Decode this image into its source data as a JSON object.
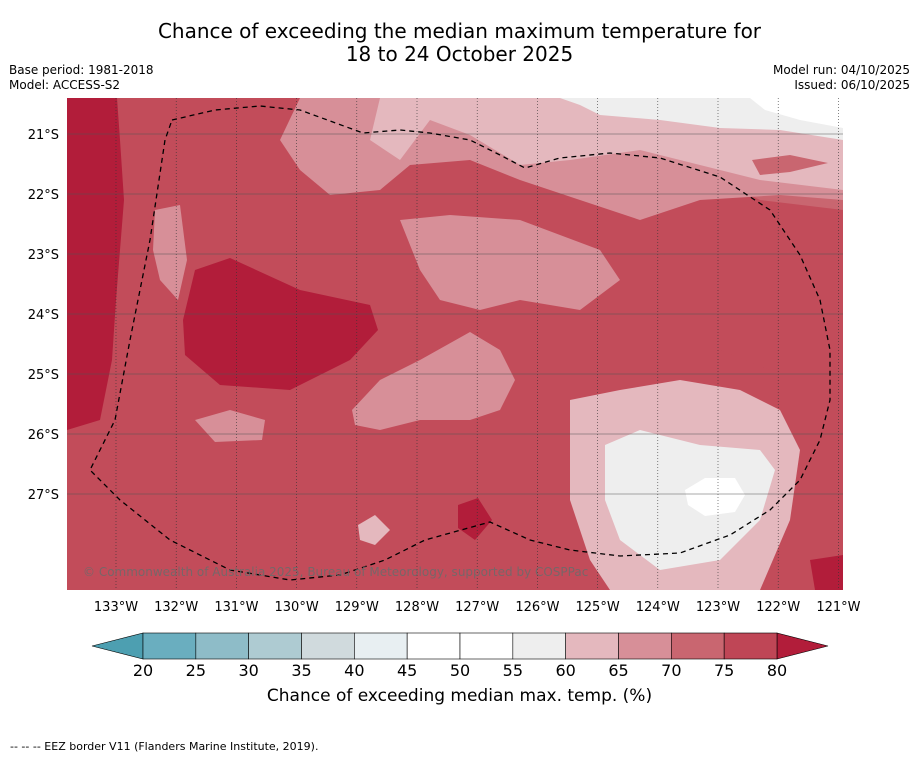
{
  "title": {
    "line1": "Chance of exceeding the median maximum temperature for",
    "line2": "18 to 24 October 2025"
  },
  "meta": {
    "base_period": "Base period: 1981-2018",
    "model": "Model: ACCESS-S2",
    "model_run": "Model run: 04/10/2025",
    "issued": "Issued: 06/10/2025"
  },
  "map": {
    "lon_ticks": [
      "133°W",
      "132°W",
      "131°W",
      "130°W",
      "129°W",
      "128°W",
      "127°W",
      "126°W",
      "125°W",
      "124°W",
      "123°W",
      "122°W",
      "121°W"
    ],
    "lat_ticks": [
      "21°S",
      "22°S",
      "23°S",
      "24°S",
      "25°S",
      "26°S",
      "27°S"
    ],
    "credit": "© Commonwealth of Australia 2025, Bureau of Meteorology, supported by COSPPac"
  },
  "colorbar": {
    "ticks": [
      "20",
      "25",
      "30",
      "35",
      "40",
      "45",
      "50",
      "55",
      "60",
      "65",
      "70",
      "75",
      "80"
    ],
    "colors": [
      "#6aaebf",
      "#8ebcc8",
      "#aecbd2",
      "#d0dadd",
      "#e8eff2",
      "#ffffff",
      "#ffffff",
      "#eeeeee",
      "#e4b8be",
      "#d78f98",
      "#c96670",
      "#bf4656"
    ],
    "extend_low_color": "#4d9fb1",
    "extend_high_color": "#b21d3a",
    "label": "Chance of exceeding median max. temp. (%)"
  },
  "footer": {
    "legend": "--  --  -- EEZ border V11 (Flanders Marine Institute, 2019)."
  }
}
